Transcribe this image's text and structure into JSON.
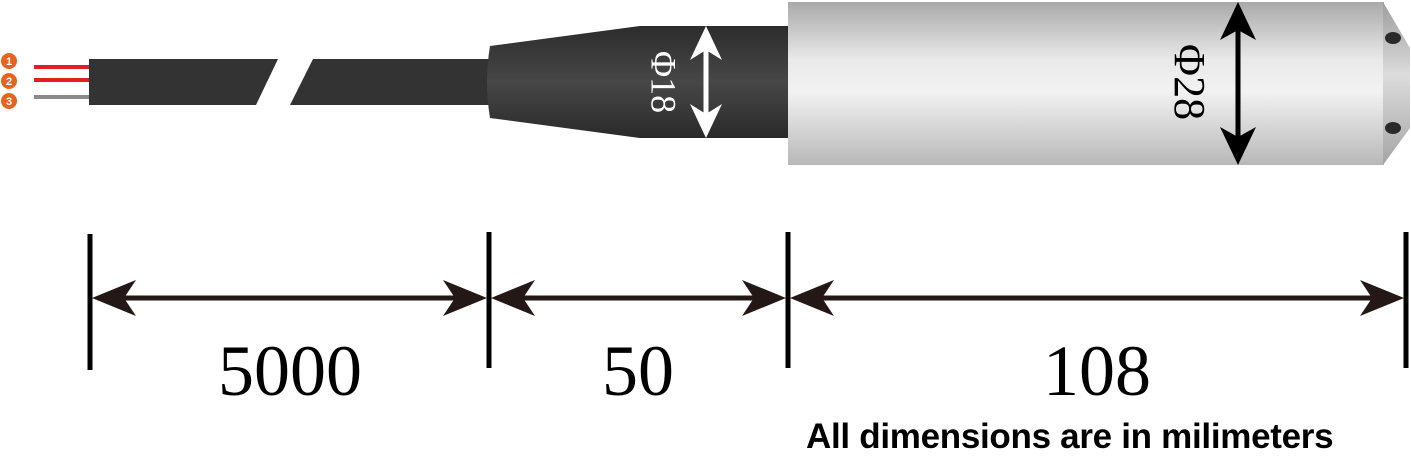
{
  "wires": [
    {
      "number": "1",
      "badge_color": "#e8641e",
      "wire_color": "#e02020"
    },
    {
      "number": "2",
      "badge_color": "#e8641e",
      "wire_color": "#e02020"
    },
    {
      "number": "3",
      "badge_color": "#e8641e",
      "wire_color": "#8a8a8a"
    }
  ],
  "diameters": {
    "connector": "Φ18",
    "body": "Φ28"
  },
  "dimensions": {
    "cable": "5000",
    "connector": "50",
    "body": "108"
  },
  "note": "All dimensions are in milimeters",
  "colors": {
    "cable": "#333333",
    "connector": "#3a3a3a",
    "body": "#d6d6d6",
    "arrow_white": "#ffffff",
    "arrow_black": "#000000"
  }
}
